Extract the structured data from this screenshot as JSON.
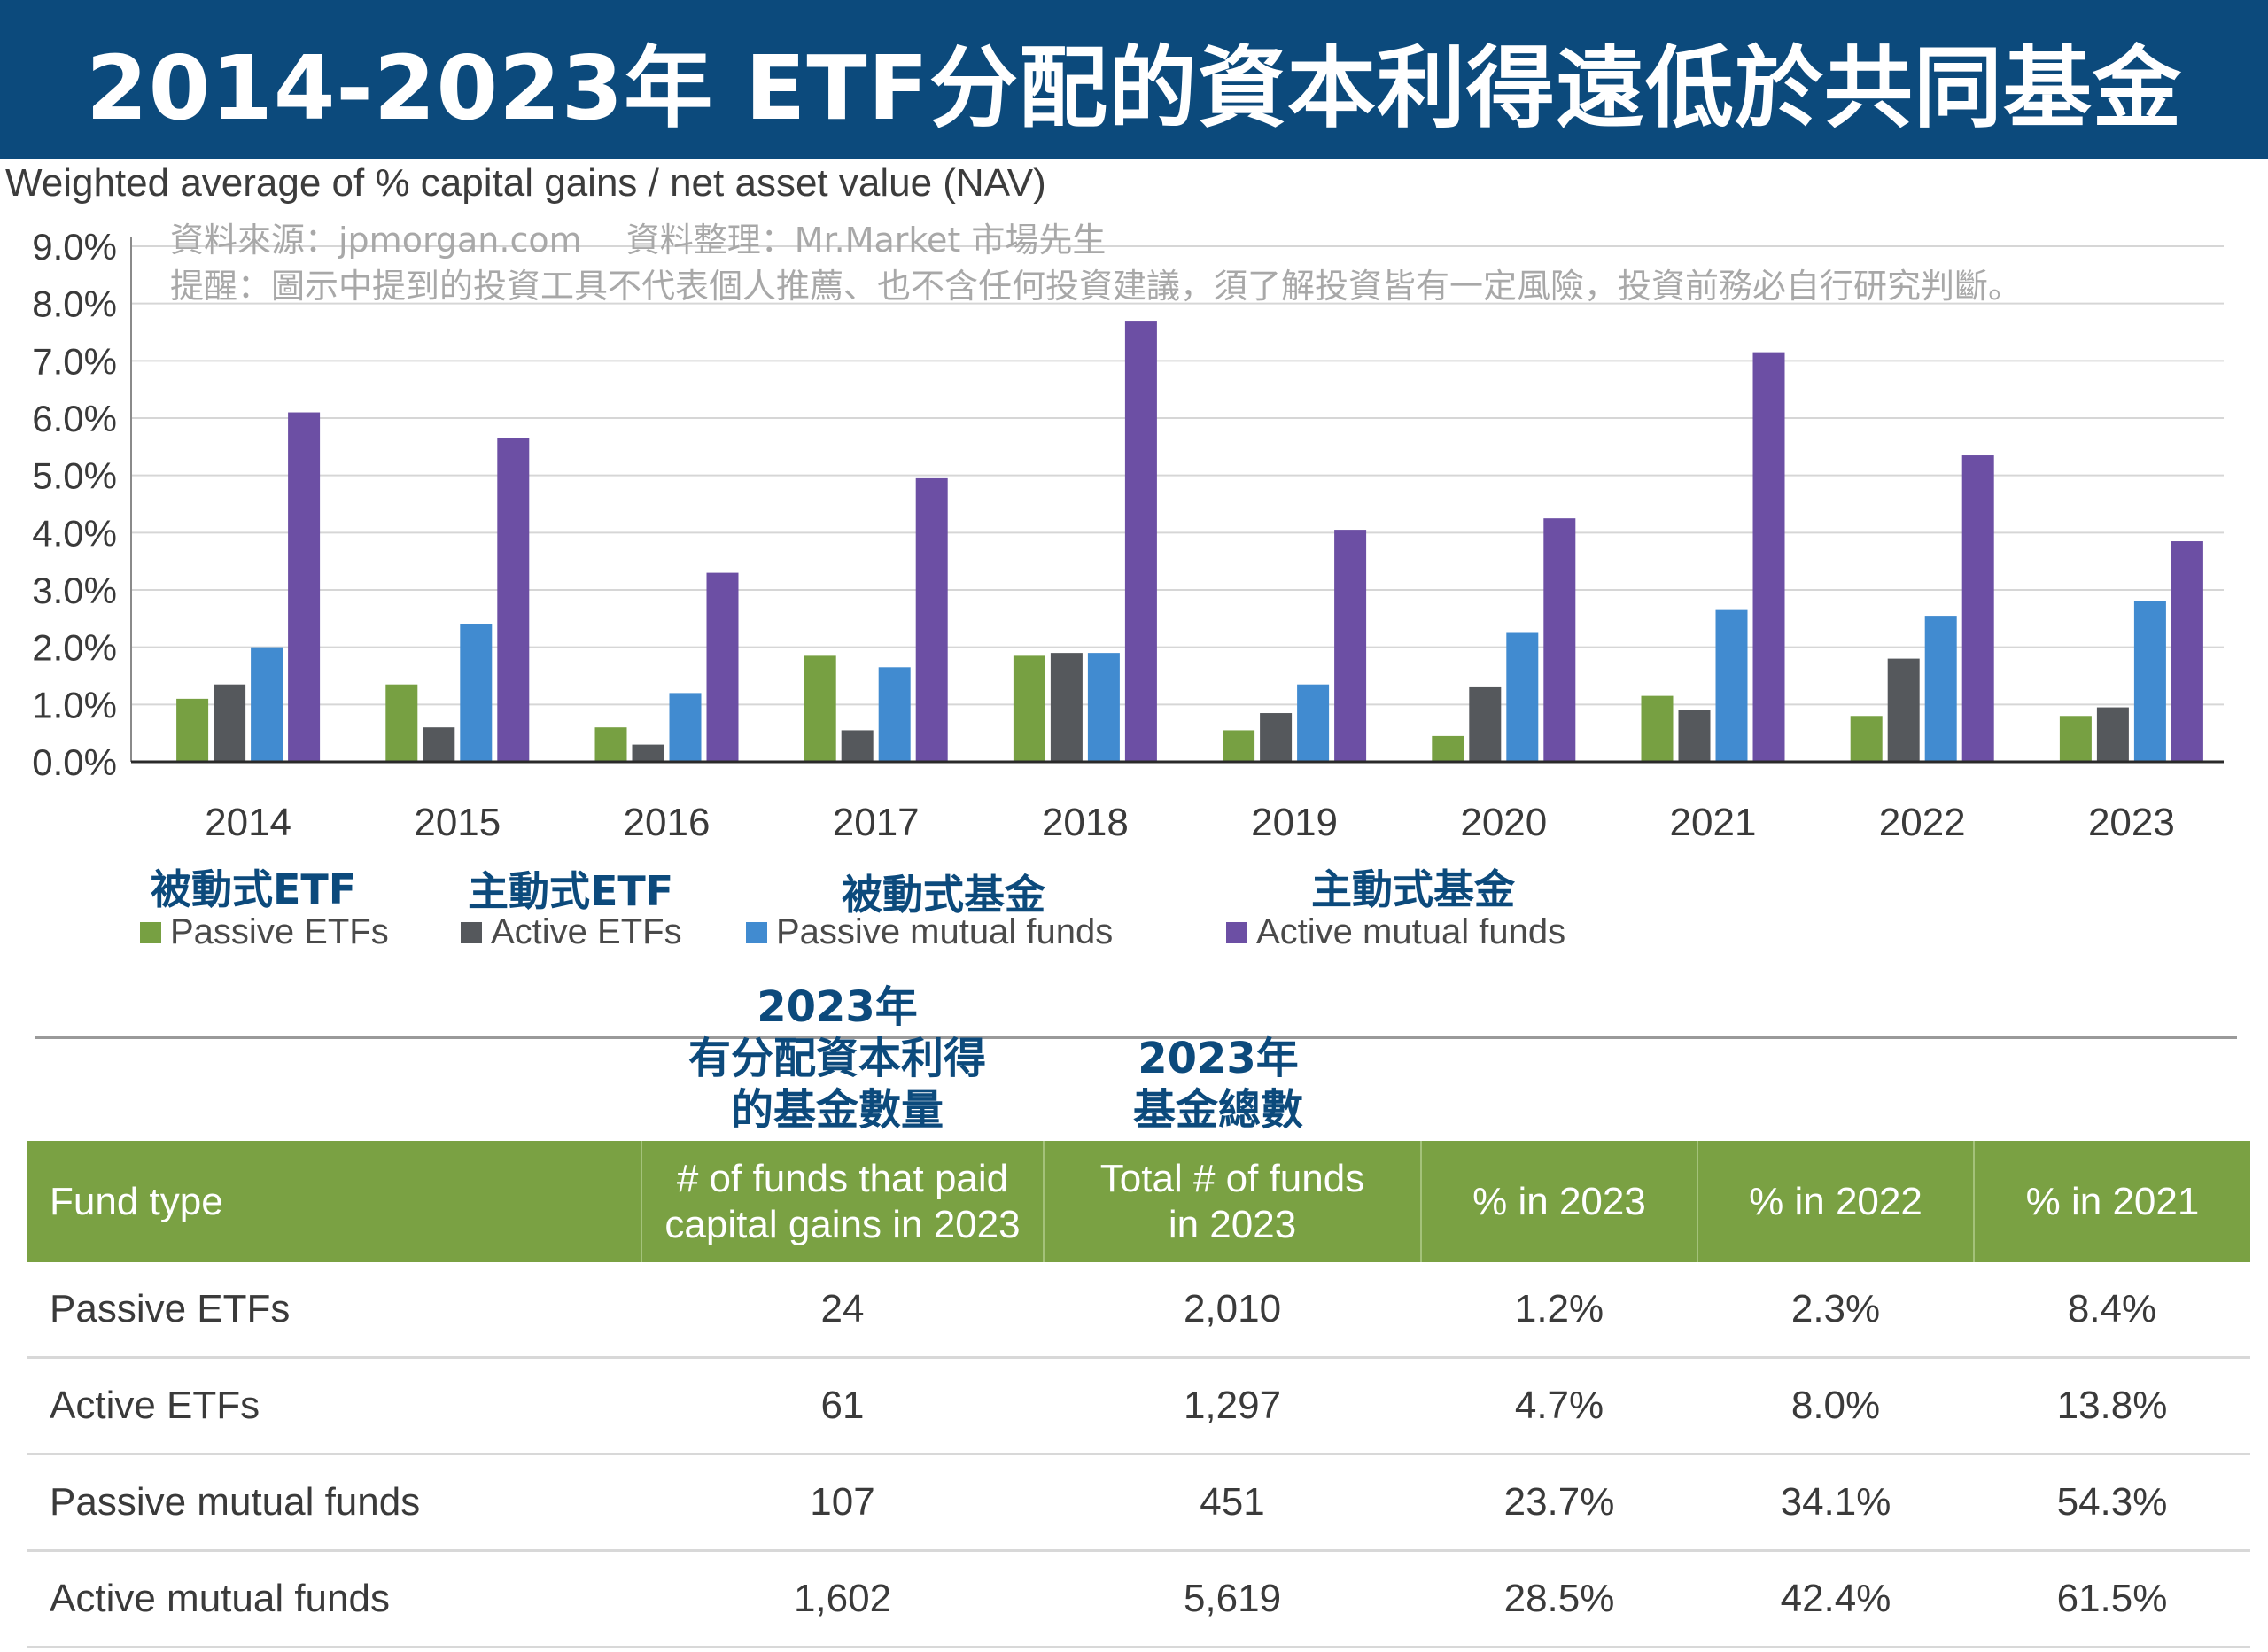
{
  "banner": {
    "title": "2014-2023年 ETF分配的資本利得遠低於共同基金"
  },
  "chart_subtitle": "Weighted average of % capital gains / net asset value (NAV)",
  "notes": {
    "source": "資料來源：jpmorgan.com　 資料整理：Mr.Market 市場先生",
    "warning": "提醒：圖示中提到的投資工具不代表個人推薦、也不含任何投資建議，須了解投資皆有一定風險，投資前務必自行研究判斷。"
  },
  "chart_data": {
    "type": "bar",
    "title": "2014-2023年 ETF分配的資本利得遠低於共同基金",
    "ylabel": "Weighted average of % capital gains / net asset value (NAV)",
    "xlabel": "",
    "ylim": [
      0,
      9
    ],
    "y_ticks": [
      "0.0%",
      "1.0%",
      "2.0%",
      "3.0%",
      "4.0%",
      "5.0%",
      "6.0%",
      "7.0%",
      "8.0%",
      "9.0%"
    ],
    "grid": true,
    "categories": [
      "2014",
      "2015",
      "2016",
      "2017",
      "2018",
      "2019",
      "2020",
      "2021",
      "2022",
      "2023"
    ],
    "series": [
      {
        "name": "Passive ETFs",
        "color": "#77a042",
        "values": [
          1.1,
          1.35,
          0.6,
          1.85,
          1.85,
          0.55,
          0.45,
          1.15,
          0.8,
          0.8
        ]
      },
      {
        "name": "Active ETFs",
        "color": "#55585c",
        "values": [
          1.35,
          0.6,
          0.3,
          0.55,
          1.9,
          0.85,
          1.3,
          0.9,
          1.8,
          0.95
        ]
      },
      {
        "name": "Passive mutual funds",
        "color": "#418bd0",
        "values": [
          2.0,
          2.4,
          1.2,
          1.65,
          1.9,
          1.35,
          2.25,
          2.65,
          2.55,
          2.8
        ]
      },
      {
        "name": "Active mutual funds",
        "color": "#6c4fa4",
        "values": [
          6.1,
          5.65,
          3.3,
          4.95,
          7.7,
          4.05,
          4.25,
          7.15,
          5.35,
          3.85
        ]
      }
    ]
  },
  "legend": {
    "items": [
      {
        "cn": "被動式ETF",
        "en": "Passive ETFs",
        "color": "#77a042"
      },
      {
        "cn": "主動式ETF",
        "en": "Active ETFs",
        "color": "#55585c"
      },
      {
        "cn": "被動式基金",
        "en": "Passive mutual funds",
        "color": "#418bd0"
      },
      {
        "cn": "主動式基金",
        "en": "Active mutual funds",
        "color": "#6c4fa4"
      }
    ]
  },
  "table": {
    "cn_headers": {
      "paid": "2023年\n有分配資本利得\n的基金數量",
      "total": "2023年\n基金總數"
    },
    "headers": [
      "Fund type",
      "# of funds that paid\ncapital gains in 2023",
      "Total # of funds\nin 2023",
      "% in 2023",
      "% in 2022",
      "% in 2021"
    ],
    "rows": [
      [
        "Passive ETFs",
        "24",
        "2,010",
        "1.2%",
        "2.3%",
        "8.4%"
      ],
      [
        "Active ETFs",
        "61",
        "1,297",
        "4.7%",
        "8.0%",
        "13.8%"
      ],
      [
        "Passive mutual funds",
        "107",
        "451",
        "23.7%",
        "34.1%",
        "54.3%"
      ],
      [
        "Active mutual funds",
        "1,602",
        "5,619",
        "28.5%",
        "42.4%",
        "61.5%"
      ]
    ]
  }
}
